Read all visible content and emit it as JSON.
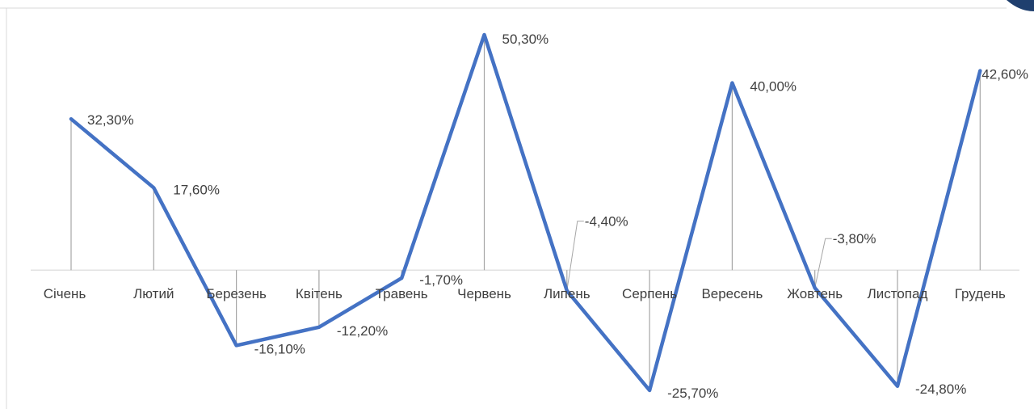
{
  "chart_data": {
    "type": "line",
    "categories": [
      "Січень",
      "Лютий",
      "Березень",
      "Квітень",
      "Травень",
      "Червень",
      "Липень",
      "Серпень",
      "Вересень",
      "Жовтень",
      "Листопад",
      "Грудень"
    ],
    "series": [
      {
        "values": [
          32.3,
          17.6,
          -16.1,
          -12.2,
          -1.7,
          50.3,
          -4.4,
          -25.7,
          40.0,
          -3.8,
          -24.8,
          42.6
        ]
      }
    ],
    "data_labels": [
      "32,30%",
      "17,60%",
      "-16,10%",
      "-12,20%",
      "-1,70%",
      "50,30%",
      "-4,40%",
      "-25,70%",
      "40,00%",
      "-3,80%",
      "-24,80%",
      "42,60%"
    ],
    "title": "",
    "xlabel": "",
    "ylabel": "",
    "ylim": [
      -26,
      51
    ],
    "grid": false,
    "legend": "none",
    "drop_lines": true,
    "colors": {
      "series": "#4472c4",
      "drop_lines": "#a6a6a6",
      "labels": "#404040",
      "axis": "#d9d9d9"
    }
  }
}
